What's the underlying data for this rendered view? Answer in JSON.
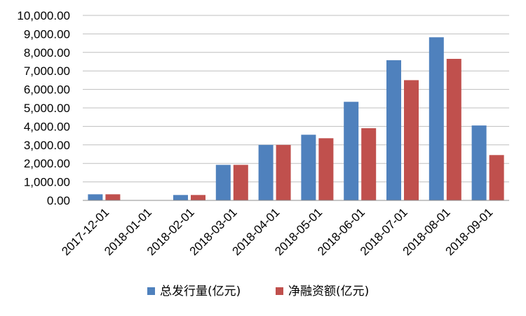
{
  "chart_data": {
    "type": "bar",
    "categories": [
      "2017-12-01",
      "2018-01-01",
      "2018-02-01",
      "2018-03-01",
      "2018-04-01",
      "2018-05-01",
      "2018-06-01",
      "2018-07-01",
      "2018-08-01",
      "2018-09-01"
    ],
    "series": [
      {
        "name": "总发行量(亿元)",
        "color": "#4f81bd",
        "values": [
          330,
          0,
          290,
          1920,
          3000,
          3550,
          5330,
          7580,
          8820,
          4050
        ]
      },
      {
        "name": "净融资额(亿元)",
        "color": "#c0504d",
        "values": [
          330,
          0,
          290,
          1920,
          3000,
          3360,
          3900,
          6500,
          7650,
          2450
        ]
      }
    ],
    "ylim": [
      0,
      10000
    ],
    "yticks": [
      "0.00",
      "1,000.00",
      "2,000.00",
      "3,000.00",
      "4,000.00",
      "5,000.00",
      "6,000.00",
      "7,000.00",
      "8,000.00",
      "9,000.00",
      "10,000.00"
    ],
    "ytick_values": [
      0,
      1000,
      2000,
      3000,
      4000,
      5000,
      6000,
      7000,
      8000,
      9000,
      10000
    ],
    "grid": true,
    "legend": "bottom"
  }
}
